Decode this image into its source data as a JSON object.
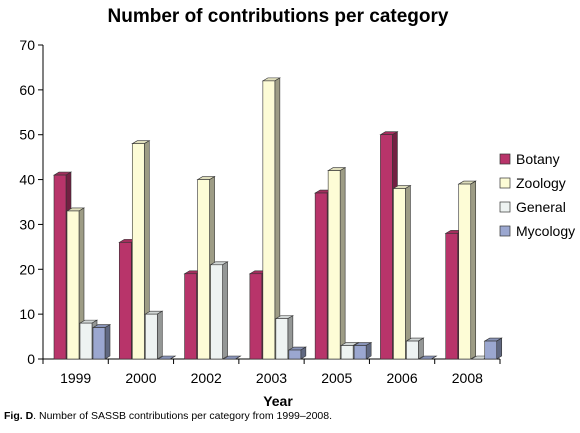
{
  "chart_data": {
    "type": "bar",
    "title": "Number of contributions per category",
    "xlabel": "Year",
    "ylabel": "",
    "ylim": [
      0,
      70
    ],
    "yticks": [
      0,
      10,
      20,
      30,
      40,
      50,
      60,
      70
    ],
    "categories": [
      "1999",
      "2000",
      "2002",
      "2003",
      "2005",
      "2006",
      "2008"
    ],
    "series": [
      {
        "name": "Botany",
        "color": "#b8346a",
        "values": [
          41,
          26,
          19,
          19,
          37,
          50,
          28
        ]
      },
      {
        "name": "Zoology",
        "color": "#fdfcd6",
        "values": [
          33,
          48,
          40,
          62,
          42,
          38,
          39
        ]
      },
      {
        "name": "General",
        "color": "#eef3f2",
        "values": [
          8,
          10,
          21,
          9,
          3,
          4,
          0
        ]
      },
      {
        "name": "Mycology",
        "color": "#9ba7d0",
        "values": [
          7,
          0,
          0,
          2,
          3,
          0,
          4
        ]
      }
    ],
    "legend_position": "right",
    "style": "3d-bar",
    "grid": false
  },
  "caption": {
    "label": "Fig. D",
    "text": ". Number of SASSB contributions per category from 1999–2008."
  }
}
